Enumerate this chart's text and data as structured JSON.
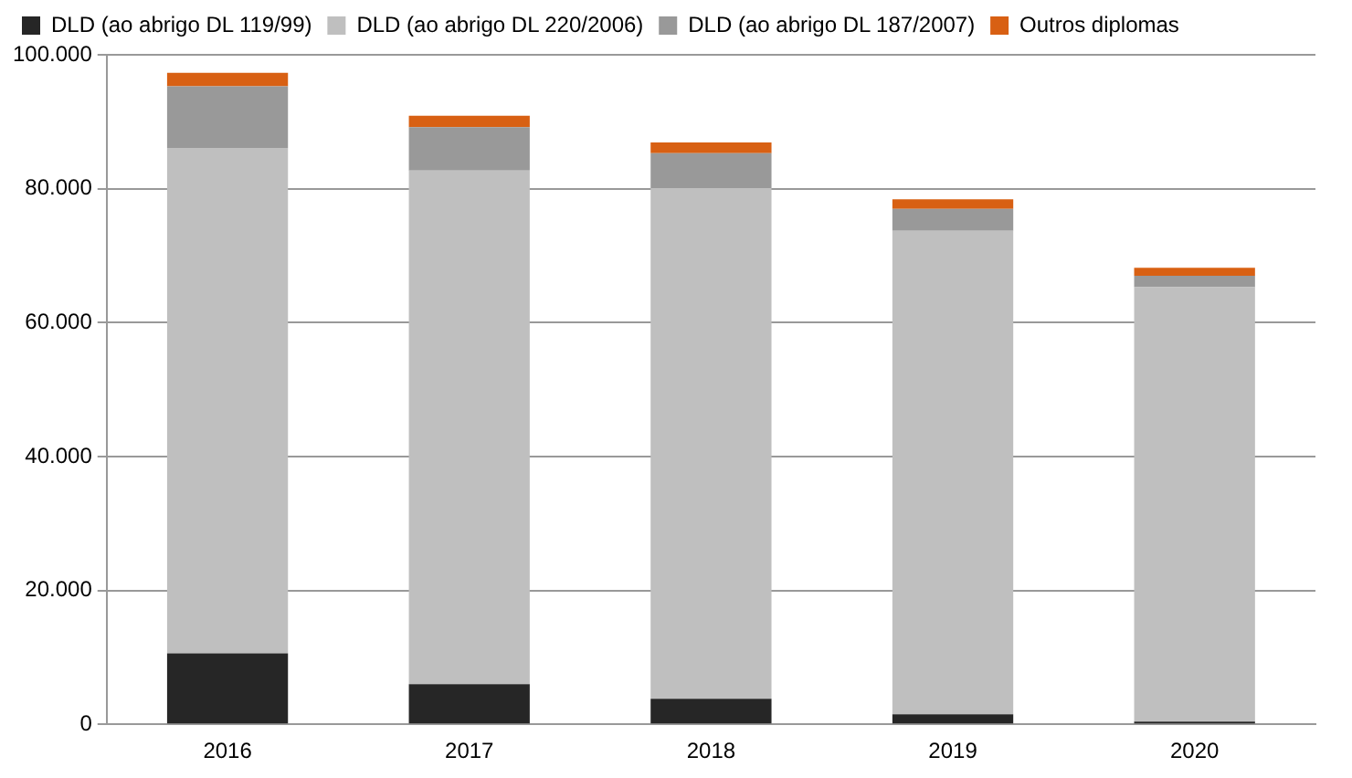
{
  "chart_data": {
    "type": "bar",
    "stacked": true,
    "categories": [
      "2016",
      "2017",
      "2018",
      "2019",
      "2020"
    ],
    "series": [
      {
        "name": "DLD (ao abrigo DL 119/99)",
        "color": "#262626",
        "values": [
          10600,
          6000,
          3800,
          1500,
          400
        ]
      },
      {
        "name": "DLD (ao abrigo DL 220/2006)",
        "color": "#bfbfbf",
        "values": [
          75500,
          76700,
          76300,
          72200,
          64900
        ]
      },
      {
        "name": "DLD (ao abrigo DL 187/2007)",
        "color": "#999999",
        "values": [
          9200,
          6500,
          5200,
          3300,
          1700
        ]
      },
      {
        "name": "Outros diplomas",
        "color": "#d86013",
        "values": [
          2000,
          1700,
          1600,
          1400,
          1200
        ]
      }
    ],
    "ylim": [
      0,
      100000
    ],
    "yticks": [
      {
        "value": 0,
        "label": "0"
      },
      {
        "value": 20000,
        "label": "20.000"
      },
      {
        "value": 40000,
        "label": "40.000"
      },
      {
        "value": 60000,
        "label": "60.000"
      },
      {
        "value": 80000,
        "label": "80.000"
      },
      {
        "value": 100000,
        "label": "100.000"
      }
    ],
    "grid": "y",
    "legend": "top"
  }
}
